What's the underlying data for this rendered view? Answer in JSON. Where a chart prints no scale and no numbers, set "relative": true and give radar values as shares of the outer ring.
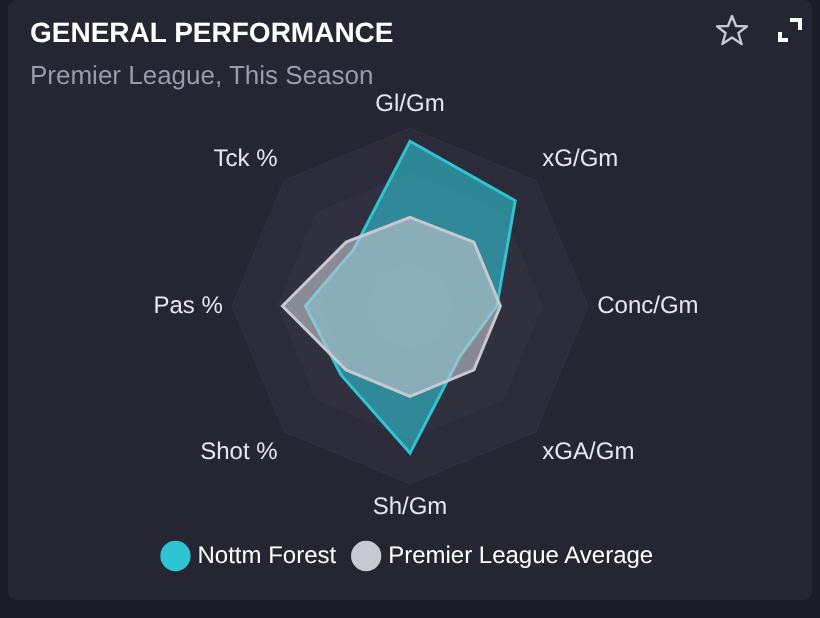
{
  "chart_data": {
    "type": "radar",
    "title": "GENERAL PERFORMANCE",
    "subtitle": "Premier League, This Season",
    "relative": true,
    "legend": "bottom",
    "categories": [
      "Gl/Gm",
      "xG/Gm",
      "Conc/Gm",
      "xGA/Gm",
      "Sh/Gm",
      "Shot %",
      "Pas %",
      "Tck %"
    ],
    "series": [
      {
        "name": "Nottm Forest",
        "color": "#2ec4d4",
        "values": [
          0.93,
          0.84,
          0.49,
          0.4,
          0.83,
          0.55,
          0.59,
          0.45
        ]
      },
      {
        "name": "Premier League Average",
        "color": "#c8c8d0",
        "values": [
          0.5,
          0.51,
          0.51,
          0.51,
          0.51,
          0.51,
          0.72,
          0.51
        ]
      }
    ]
  }
}
